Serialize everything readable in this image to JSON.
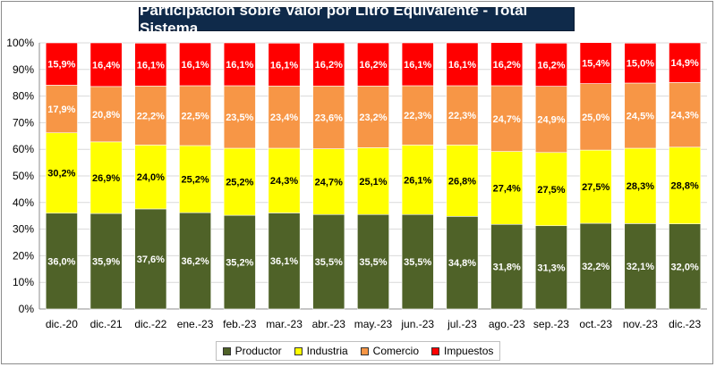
{
  "chart_data": {
    "type": "bar",
    "stacked": true,
    "title": "Participación sobre Valor por Litro Equivalente - Total Sistema",
    "categories": [
      "dic.-20",
      "dic.-21",
      "dic.-22",
      "ene.-23",
      "feb.-23",
      "mar.-23",
      "abr.-23",
      "may.-23",
      "jun.-23",
      "jul.-23",
      "ago.-23",
      "sep.-23",
      "oct.-23",
      "nov.-23",
      "dic.-23"
    ],
    "y_ticks": [
      "0%",
      "10%",
      "20%",
      "30%",
      "40%",
      "50%",
      "60%",
      "70%",
      "80%",
      "90%",
      "100%"
    ],
    "ylim": [
      0,
      100
    ],
    "legend_position": "bottom",
    "series": [
      {
        "name": "Productor",
        "color": "#4f6228",
        "label_color": "#ffffff",
        "values": [
          36.0,
          35.9,
          37.6,
          36.2,
          35.2,
          36.1,
          35.5,
          35.5,
          35.5,
          34.8,
          31.8,
          31.3,
          32.2,
          32.1,
          32.0
        ],
        "labels": [
          "36,0%",
          "35,9%",
          "37,6%",
          "36,2%",
          "35,2%",
          "36,1%",
          "35,5%",
          "35,5%",
          "35,5%",
          "34,8%",
          "31,8%",
          "31,3%",
          "32,2%",
          "32,1%",
          "32,0%"
        ]
      },
      {
        "name": "Industria",
        "color": "#ffff00",
        "label_color": "#000000",
        "values": [
          30.2,
          26.9,
          24.0,
          25.2,
          25.2,
          24.3,
          24.7,
          25.1,
          26.1,
          26.8,
          27.4,
          27.5,
          27.5,
          28.3,
          28.8
        ],
        "labels": [
          "30,2%",
          "26,9%",
          "24,0%",
          "25,2%",
          "25,2%",
          "24,3%",
          "24,7%",
          "25,1%",
          "26,1%",
          "26,8%",
          "27,4%",
          "27,5%",
          "27,5%",
          "28,3%",
          "28,8%"
        ]
      },
      {
        "name": "Comercio",
        "color": "#f79646",
        "label_color": "#ffffff",
        "values": [
          17.9,
          20.8,
          22.2,
          22.5,
          23.5,
          23.4,
          23.6,
          23.2,
          22.3,
          22.3,
          24.7,
          24.9,
          25.0,
          24.5,
          24.3
        ],
        "labels": [
          "17,9%",
          "20,8%",
          "22,2%",
          "22,5%",
          "23,5%",
          "23,4%",
          "23,6%",
          "23,2%",
          "22,3%",
          "22,3%",
          "24,7%",
          "24,9%",
          "25,0%",
          "24,5%",
          "24,3%"
        ]
      },
      {
        "name": "Impuestos",
        "color": "#ff0000",
        "label_color": "#ffffff",
        "values": [
          15.9,
          16.4,
          16.1,
          16.1,
          16.1,
          16.1,
          16.2,
          16.2,
          16.1,
          16.1,
          16.2,
          16.2,
          15.4,
          15.0,
          14.9
        ],
        "labels": [
          "15,9%",
          "16,4%",
          "16,1%",
          "16,1%",
          "16,1%",
          "16,1%",
          "16,2%",
          "16,2%",
          "16,1%",
          "16,1%",
          "16,2%",
          "16,2%",
          "15,4%",
          "15,0%",
          "14,9%"
        ]
      }
    ]
  }
}
